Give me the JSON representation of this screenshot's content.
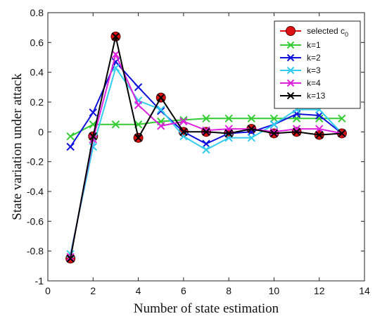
{
  "chart_data": {
    "type": "line",
    "xlabel": "Number of state estimation",
    "ylabel": "State variation under attack",
    "xlim": [
      0,
      14
    ],
    "ylim": [
      -1,
      0.8
    ],
    "xticks": [
      0,
      2,
      4,
      6,
      8,
      10,
      12,
      14
    ],
    "yticks": [
      0.8,
      0.6,
      0.4,
      0.2,
      0,
      -0.2,
      -0.4,
      -0.6,
      -0.8,
      -1
    ],
    "x": [
      1,
      2,
      3,
      4,
      5,
      6,
      7,
      8,
      9,
      10,
      11,
      12,
      13
    ],
    "legend_position": "top-right",
    "grid": false,
    "series": [
      {
        "name": "k=1",
        "color": "#33cc33",
        "marker": "x",
        "values": [
          -0.03,
          0.05,
          0.05,
          0.05,
          0.07,
          0.08,
          0.09,
          0.09,
          0.09,
          0.09,
          0.09,
          0.09,
          0.09
        ]
      },
      {
        "name": "k=2",
        "color": "#1010dd",
        "marker": "x",
        "values": [
          -0.1,
          0.13,
          0.47,
          0.3,
          0.14,
          0.0,
          -0.08,
          -0.01,
          0.0,
          0.05,
          0.12,
          0.11,
          -0.01
        ]
      },
      {
        "name": "k=3",
        "color": "#33ccee",
        "marker": "x",
        "values": [
          -0.82,
          -0.1,
          0.43,
          0.21,
          0.15,
          -0.03,
          -0.12,
          -0.04,
          -0.04,
          0.05,
          0.15,
          0.15,
          -0.01
        ]
      },
      {
        "name": "k=4",
        "color": "#dd22dd",
        "marker": "x",
        "values": [
          -0.84,
          -0.05,
          0.52,
          0.18,
          0.04,
          0.07,
          0.01,
          0.02,
          0.02,
          0.0,
          0.02,
          0.02,
          -0.01
        ]
      },
      {
        "name": "k=13",
        "color": "#000000",
        "marker": "x",
        "values": [
          -0.85,
          -0.03,
          0.64,
          -0.04,
          0.23,
          0.0,
          0.0,
          -0.01,
          0.02,
          -0.01,
          0.0,
          -0.02,
          -0.01
        ]
      }
    ],
    "selected": {
      "name": "selected c",
      "name_subscript": "0",
      "color": "#dd1111",
      "marker": "circle",
      "values": [
        -0.85,
        -0.03,
        0.64,
        -0.04,
        0.23,
        0.0,
        0.0,
        -0.01,
        0.02,
        -0.01,
        0.0,
        -0.02,
        -0.01
      ]
    }
  }
}
